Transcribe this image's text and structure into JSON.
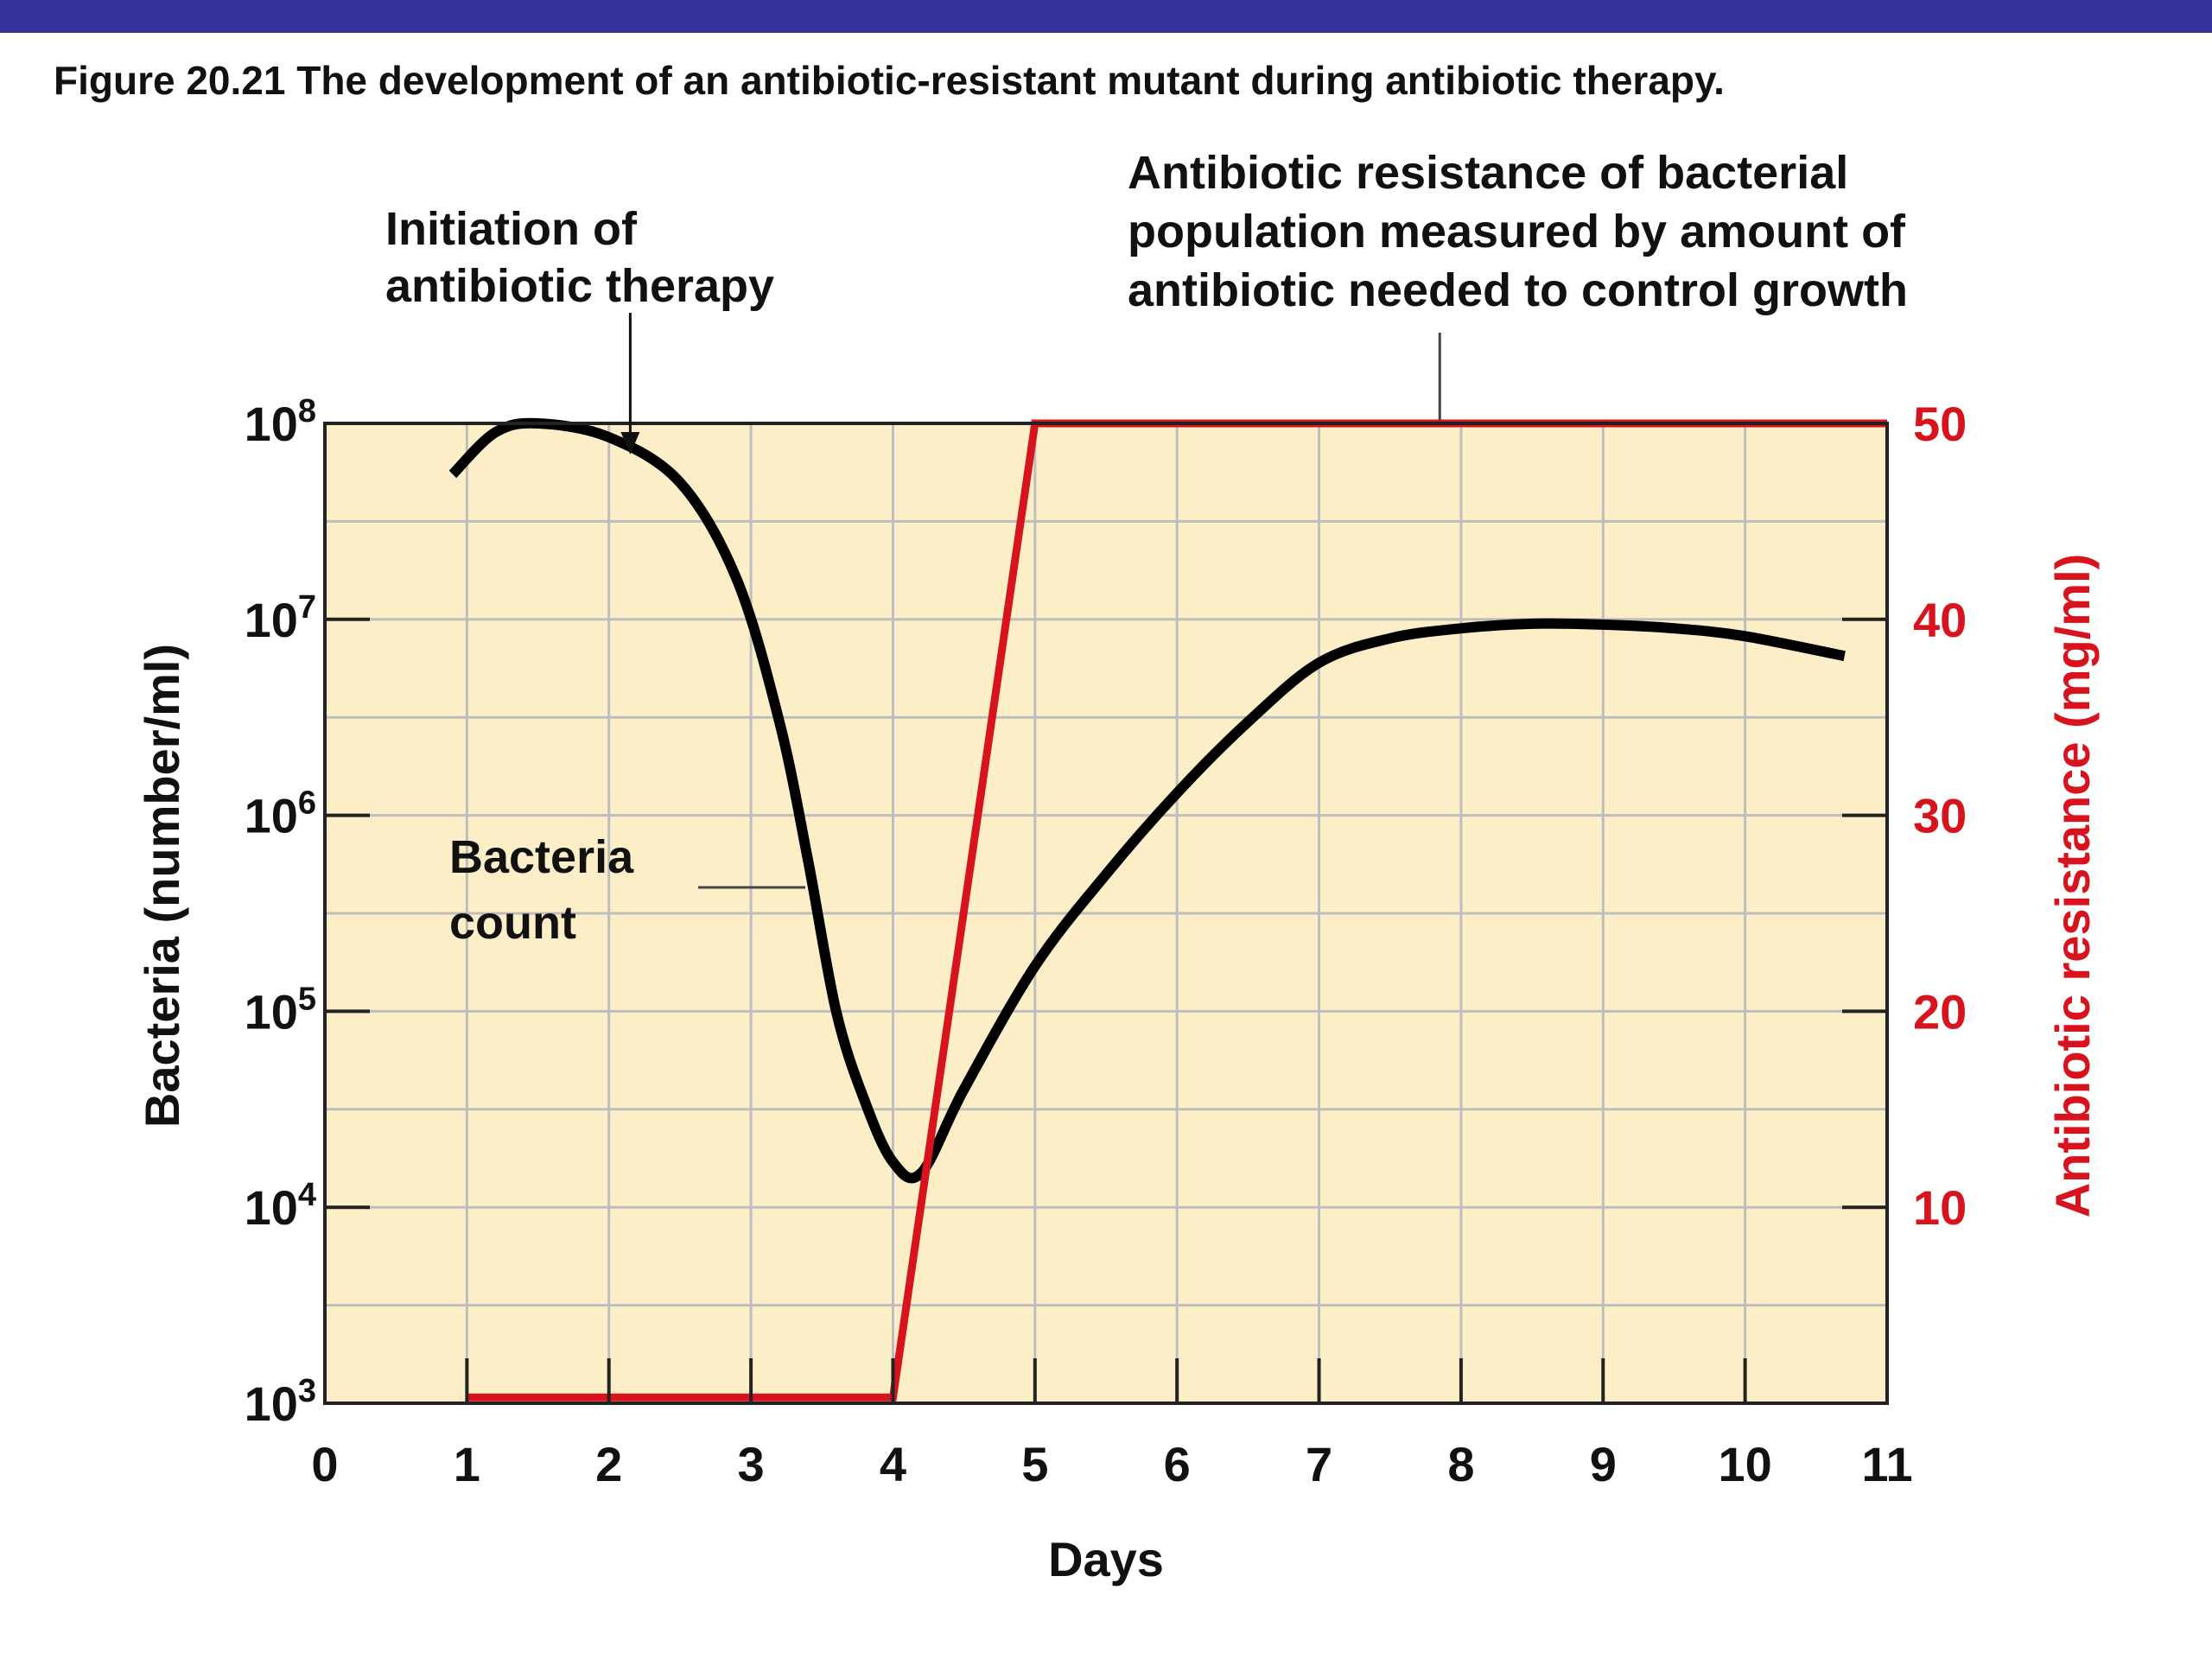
{
  "banner_color": "#333399",
  "figure_title": "Figure 20.21 The development of an antibiotic-resistant mutant during antibiotic therapy.",
  "chart_data": {
    "type": "line",
    "title": "Figure 20.21 The development of an antibiotic-resistant mutant during antibiotic therapy.",
    "xlabel": "Days",
    "ylabel_left": "Bacteria (number/ml)",
    "ylabel_right": "Antibiotic resistance (mg/ml)",
    "xlim": [
      0,
      11
    ],
    "ylim_left_log10": [
      3,
      8
    ],
    "ylim_right": [
      0,
      50
    ],
    "left_scale": "log",
    "grid": true,
    "x_ticks": [
      "0",
      "1",
      "2",
      "3",
      "4",
      "5",
      "6",
      "7",
      "8",
      "9",
      "10",
      "11"
    ],
    "y_left_ticks": [
      {
        "exp": 3,
        "base": "10",
        "sup": "3"
      },
      {
        "exp": 4,
        "base": "10",
        "sup": "4"
      },
      {
        "exp": 5,
        "base": "10",
        "sup": "5"
      },
      {
        "exp": 6,
        "base": "10",
        "sup": "6"
      },
      {
        "exp": 7,
        "base": "10",
        "sup": "7"
      },
      {
        "exp": 8,
        "base": "10",
        "sup": "8"
      }
    ],
    "y_right_ticks": [
      {
        "value": 10,
        "label": "10"
      },
      {
        "value": 20,
        "label": "20"
      },
      {
        "value": 30,
        "label": "30"
      },
      {
        "value": 40,
        "label": "40"
      },
      {
        "value": 50,
        "label": "50"
      }
    ],
    "colors": {
      "plot_background": "#fcefc8",
      "grid": "#bdbdbd",
      "bacteria": "#000000",
      "resistance": "#d7141e",
      "right_axis": "#d7141e"
    },
    "series": [
      {
        "axis": "left",
        "color": "#000000",
        "points": [
          {
            "day": 0.9,
            "bacteria_per_ml": 55000000
          },
          {
            "day": 1.2,
            "bacteria_per_ml": 90000000
          },
          {
            "day": 1.5,
            "bacteria_per_ml": 100000000
          },
          {
            "day": 2.0,
            "bacteria_per_ml": 85000000
          },
          {
            "day": 2.5,
            "bacteria_per_ml": 50000000
          },
          {
            "day": 2.9,
            "bacteria_per_ml": 16000000
          },
          {
            "day": 3.2,
            "bacteria_per_ml": 3000000
          },
          {
            "day": 3.4,
            "bacteria_per_ml": 600000
          },
          {
            "day": 3.6,
            "bacteria_per_ml": 100000
          },
          {
            "day": 3.8,
            "bacteria_per_ml": 35000
          },
          {
            "day": 4.0,
            "bacteria_per_ml": 17000
          },
          {
            "day": 4.2,
            "bacteria_per_ml": 15000
          },
          {
            "day": 4.5,
            "bacteria_per_ml": 40000
          },
          {
            "day": 5.0,
            "bacteria_per_ml": 170000
          },
          {
            "day": 5.5,
            "bacteria_per_ml": 500000
          },
          {
            "day": 6.0,
            "bacteria_per_ml": 1300000
          },
          {
            "day": 6.5,
            "bacteria_per_ml": 3000000
          },
          {
            "day": 7.0,
            "bacteria_per_ml": 6000000
          },
          {
            "day": 7.5,
            "bacteria_per_ml": 8000000
          },
          {
            "day": 8.0,
            "bacteria_per_ml": 9000000
          },
          {
            "day": 8.5,
            "bacteria_per_ml": 9500000
          },
          {
            "day": 9.0,
            "bacteria_per_ml": 9400000
          },
          {
            "day": 9.5,
            "bacteria_per_ml": 9000000
          },
          {
            "day": 10.0,
            "bacteria_per_ml": 8200000
          },
          {
            "day": 10.7,
            "bacteria_per_ml": 6500000
          }
        ]
      },
      {
        "axis": "right",
        "color": "#d7141e",
        "points": [
          {
            "day": 1.0,
            "mg_per_ml": 0.3
          },
          {
            "day": 4.0,
            "mg_per_ml": 0.3
          },
          {
            "day": 5.0,
            "mg_per_ml": 50
          },
          {
            "day": 11.0,
            "mg_per_ml": 50
          }
        ]
      }
    ],
    "annotations": [
      {
        "lines": [
          "Initiation of",
          "antibiotic therapy"
        ],
        "points_to_day": 2.15
      },
      {
        "lines": [
          "Antibiotic resistance of bacterial",
          "population measured by amount of",
          "antibiotic needed to control growth"
        ],
        "points_to_day": 7.85
      },
      {
        "lines": [
          "Bacteria",
          "count"
        ],
        "points_to_day": 3.4
      }
    ]
  }
}
